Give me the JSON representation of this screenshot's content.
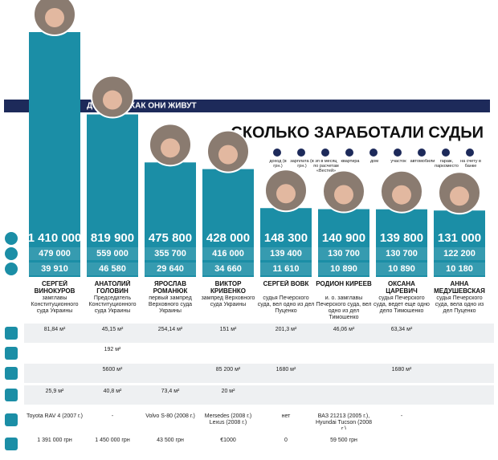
{
  "chart_data": {
    "type": "bar",
    "section": "ДОХОДЫ",
    "subtitle": "КАК ОНИ ЖИВУТ",
    "title": "СКОЛЬКО ЗАРАБОТАЛИ СУДЬИ",
    "categories": [
      "СЕРГЕЙ ВИНОКУРОВ",
      "АНАТОЛИЙ ГОЛОВИН",
      "ЯРОСЛАВ РОМАНЮК",
      "ВИКТОР КРИВЕНКО",
      "СЕРГЕЙ ВОВК",
      "РОДИОН КИРЕЕВ",
      "ОКСАНА ЦАРЕВИЧ",
      "АННА МЕДУШЕВСКАЯ"
    ],
    "roles": [
      "замглавы Конституционного суда Украины",
      "Председатель Конституционного суда Украины",
      "первый зампред Верховного суда Украины",
      "зампред Верховного суда Украины",
      "судья Печерского суда, вел одно из дел Пуценко",
      "и. о. замглавы Печерского суда, вел одно из дел Тимошенко",
      "судья Печерского суда, ведет еще одно дело Тимошенко",
      "судья Печерского суда, вела одно из дел Пуценко"
    ],
    "series": [
      {
        "name": "доход (в грн.)",
        "color": "#1b8ea6",
        "values": [
          1410000,
          819900,
          475800,
          428000,
          148300,
          140900,
          139800,
          131000
        ],
        "value_labels": [
          "1 410 000",
          "819 900",
          "475 800",
          "428 000",
          "148 300",
          "140 900",
          "139 800",
          "131 000"
        ]
      },
      {
        "name": "зарплата (в грн.)",
        "color": "#1b8ea6",
        "values": [
          479000,
          559000,
          355700,
          416000,
          139400,
          130700,
          130700,
          122200
        ],
        "value_labels": [
          "479 000",
          "559 000",
          "355 700",
          "416 000",
          "139 400",
          "130 700",
          "130 700",
          "122 200"
        ]
      },
      {
        "name": "зп в месяц по расчетам «Вестей»",
        "color": "#1b8ea6",
        "values": [
          39910,
          46580,
          29640,
          34660,
          11610,
          10890,
          10890,
          10180
        ],
        "value_labels": [
          "39 910",
          "46 580",
          "29 640",
          "34 660",
          "11 610",
          "10 890",
          "10 890",
          "10 180"
        ]
      }
    ],
    "assets": {
      "labels": [
        "квартира",
        "дом",
        "участок",
        "автомобили",
        "гараж, паркоместо",
        "на счету в банке"
      ],
      "rows": [
        [
          "81,84 м²",
          "45,15 м²",
          "254,14 м²",
          "151 м²",
          "201,3 м²",
          "46,06 м²",
          "63,34 м²",
          null
        ],
        [
          null,
          "192 м²",
          null,
          null,
          null,
          null,
          null,
          null
        ],
        [
          null,
          "5600 м²",
          null,
          "85 200 м²",
          "1680 м²",
          null,
          "1680 м²",
          null
        ],
        [
          "Toyota RAV 4 (2007 г.)",
          "-",
          "Volvo S-80 (2008 г.)",
          "Mersedes (2008 г.) Lexus (2008 г.)",
          "нет",
          "ВАЗ 21213 (2005 г.), Hyundai Tucson (2008 г.)",
          "-",
          null
        ],
        [
          "25,9 м²",
          "40,8 м²",
          "73,4 м²",
          "20 м²",
          null,
          null,
          null,
          null
        ],
        [
          "1 391 000 грн",
          "1 450 000 грн",
          "43 500 грн",
          "€1000",
          "0",
          "59 500 грн",
          null,
          null
        ]
      ]
    }
  }
}
